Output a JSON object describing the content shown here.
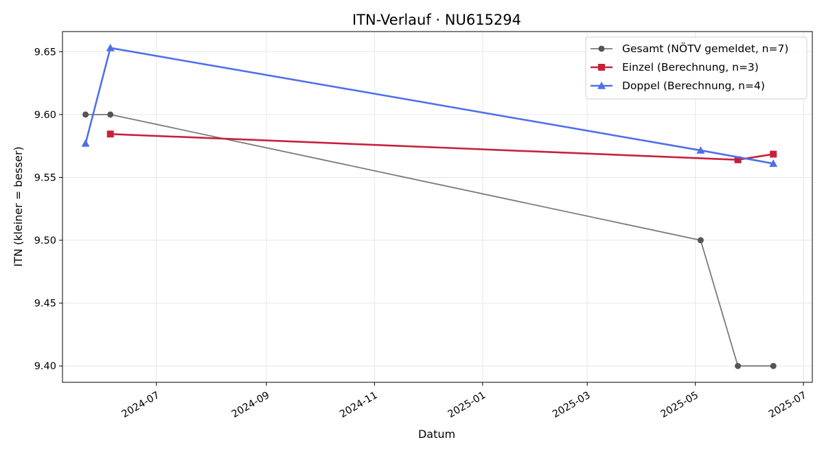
{
  "chart_data": {
    "type": "line",
    "title": "ITN-Verlauf · NU615294",
    "xlabel": "Datum",
    "ylabel": "ITN  (kleiner = besser)",
    "x_type": "date",
    "xlim": [
      "2024-05-09",
      "2025-07-06"
    ],
    "ylim": [
      9.387,
      9.666
    ],
    "x_ticks": [
      "2024-07",
      "2024-09",
      "2024-11",
      "2025-01",
      "2025-03",
      "2025-05",
      "2025-07"
    ],
    "y_ticks": [
      9.4,
      9.45,
      9.5,
      9.55,
      9.6,
      9.65
    ],
    "y_tick_labels": [
      "9.40",
      "9.45",
      "9.50",
      "9.55",
      "9.60",
      "9.65"
    ],
    "grid": true,
    "legend_position": "top-right",
    "series": [
      {
        "name": "Gesamt (NÖTV gemeldet, n=7)",
        "color": "#555555",
        "marker": "circle",
        "points": [
          {
            "x": "2024-05-22",
            "y": 9.6
          },
          {
            "x": "2024-06-05",
            "y": 9.6
          },
          {
            "x": "2025-05-04",
            "y": 9.5
          },
          {
            "x": "2025-05-25",
            "y": 9.4
          },
          {
            "x": "2025-06-14",
            "y": 9.4
          }
        ]
      },
      {
        "name": "Einzel (Berechnung, n=3)",
        "color": "#c8203c",
        "marker": "square",
        "points": [
          {
            "x": "2024-06-05",
            "y": 9.5845
          },
          {
            "x": "2025-05-25",
            "y": 9.564
          },
          {
            "x": "2025-06-14",
            "y": 9.5685
          }
        ]
      },
      {
        "name": "Doppel (Berechnung, n=4)",
        "color": "#4f6fea",
        "marker": "triangle",
        "points": [
          {
            "x": "2024-05-22",
            "y": 9.577
          },
          {
            "x": "2024-06-05",
            "y": 9.653
          },
          {
            "x": "2025-05-04",
            "y": 9.5715
          },
          {
            "x": "2025-06-14",
            "y": 9.561
          }
        ]
      }
    ]
  }
}
